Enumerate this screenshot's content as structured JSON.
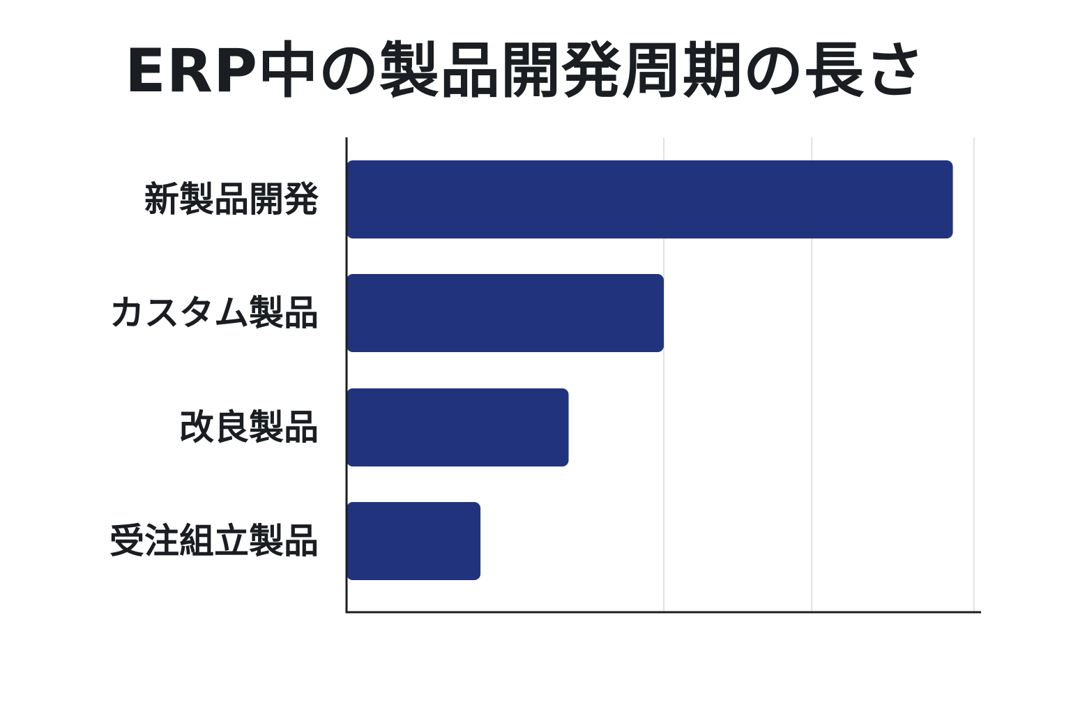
{
  "chart_data": {
    "type": "bar",
    "orientation": "horizontal",
    "title": "ERP中の製品開発周期の長さ",
    "categories": [
      "新製品開発",
      "カスタム製品",
      "改良製品",
      "受注組立製品"
    ],
    "values": [
      86,
      45,
      31.5,
      19
    ],
    "xlabel": "",
    "ylabel": "",
    "xlim": [
      0,
      90
    ],
    "x_gridlines": [
      45,
      66,
      89
    ],
    "grid": true,
    "legend": "none",
    "colors": {
      "bar": "#22337d",
      "axis": "#1a1d21",
      "grid": "#d9d9d9",
      "text": "#1a1d21"
    }
  }
}
